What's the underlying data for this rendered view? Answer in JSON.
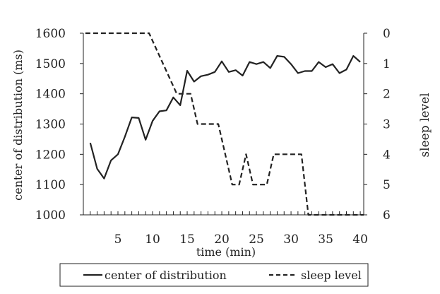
{
  "chart_data": {
    "type": "line",
    "xlabel": "time (min)",
    "ylabel_left": "center of distribution (ms)",
    "ylabel_right": "sleep level",
    "xlim": [
      0,
      40.5
    ],
    "ylim_left": [
      1000,
      1600
    ],
    "ylim_right": [
      6,
      0
    ],
    "x_ticks": [
      5,
      10,
      15,
      20,
      25,
      30,
      35,
      40
    ],
    "y_ticks_left": [
      1000,
      1100,
      1200,
      1300,
      1400,
      1500,
      1600
    ],
    "y_ticks_right": [
      0,
      1,
      2,
      3,
      4,
      5,
      6
    ],
    "grid": false,
    "legend_position": "bottom",
    "series": [
      {
        "name": "center of distribution",
        "axis": "left",
        "style": "solid",
        "color": "#222222",
        "x": [
          1,
          2,
          3,
          4,
          5,
          6,
          7,
          8,
          9,
          10,
          11,
          12,
          13,
          14,
          15,
          16,
          17,
          18,
          19,
          20,
          21,
          22,
          23,
          24,
          25,
          26,
          27,
          28,
          29,
          30,
          31,
          32,
          33,
          34,
          35,
          36,
          37,
          38,
          39,
          40
        ],
        "y": [
          1238,
          1152,
          1120,
          1180,
          1200,
          1258,
          1322,
          1320,
          1248,
          1310,
          1342,
          1345,
          1388,
          1362,
          1476,
          1440,
          1458,
          1463,
          1472,
          1507,
          1472,
          1478,
          1460,
          1505,
          1498,
          1505,
          1485,
          1525,
          1522,
          1498,
          1468,
          1475,
          1475,
          1505,
          1488,
          1498,
          1468,
          1480,
          1525,
          1505
        ]
      },
      {
        "name": "sleep level",
        "axis": "right",
        "style": "dashed",
        "color": "#222222",
        "x": [
          0.3,
          9.5,
          13.5,
          15.5,
          16.5,
          19.5,
          21.5,
          22.5,
          23.5,
          24.5,
          25.5,
          26.5,
          27.5,
          28.5,
          31.5,
          32.5,
          40.5
        ],
        "y": [
          0,
          0,
          2,
          2,
          3,
          3,
          5,
          5,
          4,
          5,
          5,
          5,
          4,
          4,
          4,
          6,
          6
        ]
      }
    ]
  }
}
